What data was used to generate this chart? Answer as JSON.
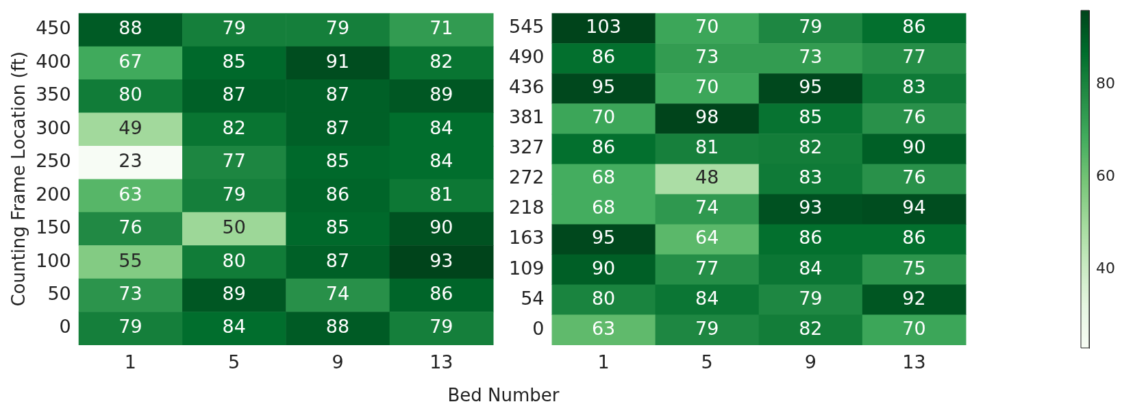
{
  "chart_data": [
    {
      "type": "heatmap",
      "xlabel": "Bed Number",
      "ylabel": "Counting Frame Location (ft)",
      "categories": [
        "1",
        "5",
        "9",
        "13"
      ],
      "y_categories": [
        "450",
        "400",
        "350",
        "300",
        "250",
        "200",
        "150",
        "100",
        "50",
        "0"
      ],
      "cells": [
        [
          88,
          79,
          79,
          71
        ],
        [
          67,
          85,
          91,
          82
        ],
        [
          80,
          87,
          87,
          89
        ],
        [
          49,
          82,
          87,
          84
        ],
        [
          23,
          77,
          85,
          84
        ],
        [
          63,
          79,
          86,
          81
        ],
        [
          76,
          50,
          85,
          90
        ],
        [
          55,
          80,
          87,
          93
        ],
        [
          73,
          89,
          74,
          86
        ],
        [
          79,
          84,
          88,
          79
        ]
      ],
      "data_labels": true
    },
    {
      "type": "heatmap",
      "categories": [
        "1",
        "5",
        "9",
        "13"
      ],
      "y_categories": [
        "545",
        "490",
        "436",
        "381",
        "327",
        "272",
        "218",
        "163",
        "109",
        "54",
        "0"
      ],
      "cells": [
        [
          103,
          70,
          79,
          86
        ],
        [
          86,
          73,
          73,
          77
        ],
        [
          95,
          70,
          95,
          83
        ],
        [
          70,
          98,
          85,
          76
        ],
        [
          86,
          81,
          82,
          90
        ],
        [
          68,
          48,
          83,
          76
        ],
        [
          68,
          74,
          93,
          94
        ],
        [
          95,
          64,
          86,
          86
        ],
        [
          90,
          77,
          84,
          75
        ],
        [
          80,
          84,
          79,
          92
        ],
        [
          63,
          79,
          82,
          70
        ]
      ],
      "data_labels": true,
      "clim": [
        23,
        96
      ],
      "cticks": [
        40,
        60,
        80
      ]
    }
  ]
}
